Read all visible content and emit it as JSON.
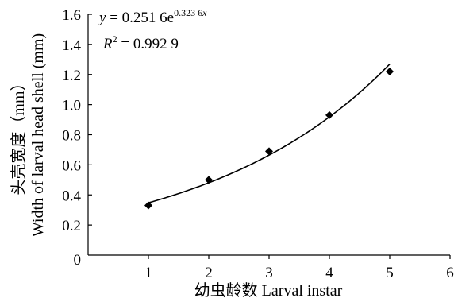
{
  "chart_data": {
    "type": "scatter",
    "x": [
      1,
      2,
      3,
      4,
      5
    ],
    "y": [
      0.33,
      0.5,
      0.69,
      0.93,
      1.22
    ],
    "xlabel": "幼虫龄数 Larval instar",
    "ylabel_cn": "头壳宽度（mm）",
    "ylabel_en": "Width of larval head shell (mm)",
    "xlim": [
      0,
      6
    ],
    "ylim": [
      0,
      1.6
    ],
    "x_ticks": [
      0,
      1,
      2,
      3,
      4,
      5,
      6
    ],
    "y_ticks": [
      0,
      0.2,
      0.4,
      0.6,
      0.8,
      1.0,
      1.2,
      1.4,
      1.6
    ],
    "x_tick_labels": [
      "0",
      "1",
      "2",
      "3",
      "4",
      "5",
      "6"
    ],
    "y_tick_labels": [
      "0",
      "0.2",
      "0.4",
      "0.6",
      "0.8",
      "1.0",
      "1.2",
      "1.4",
      "1.6"
    ],
    "grid": false,
    "marker": "diamond",
    "trendline": {
      "type": "exponential",
      "a": 0.2516,
      "b": 0.3236,
      "x_range": [
        1,
        5
      ]
    },
    "annotations": {
      "eq_y": "y",
      "eq_mid": " = 0.251 6e",
      "eq_exp_num": "0.323 6",
      "eq_exp_var": "x",
      "r2_r": "R",
      "r2_sup": "2",
      "r2_val": " = 0.992 9"
    },
    "colors": {
      "marker": "#000000",
      "line": "#000000",
      "axis": "#000000"
    }
  }
}
